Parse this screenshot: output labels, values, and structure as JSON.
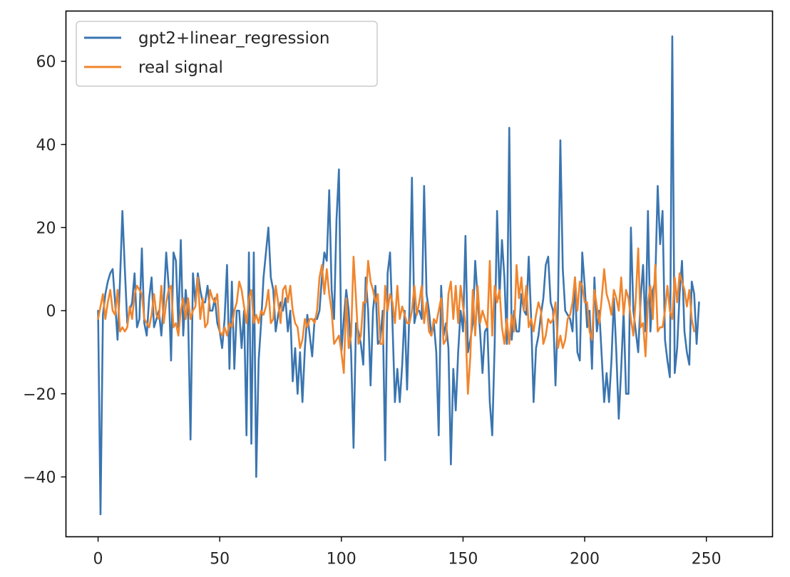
{
  "chart_data": {
    "type": "line",
    "title": "",
    "xlabel": "",
    "ylabel": "",
    "xlim": [
      -13.2,
      277.2
    ],
    "ylim": [
      -54.4,
      72.1
    ],
    "xticks": [
      0,
      50,
      100,
      150,
      200,
      250
    ],
    "yticks": [
      -40,
      -20,
      0,
      20,
      40,
      60
    ],
    "xtick_labels": [
      "0",
      "50",
      "100",
      "150",
      "200",
      "250"
    ],
    "ytick_labels": [
      "−40",
      "−20",
      "0",
      "20",
      "40",
      "60"
    ],
    "grid": false,
    "legend_position": "upper-left",
    "series": [
      {
        "name": "gpt2+linear_regression",
        "color": "#3a75b0",
        "x_start": 0,
        "values": [
          0,
          -49,
          -1,
          4,
          7,
          9,
          10,
          2,
          -7,
          7,
          24,
          10,
          -3,
          0,
          2,
          9,
          -4,
          -2,
          15,
          -3,
          -6,
          3,
          8,
          -4,
          -2,
          0,
          -6,
          2,
          14,
          6,
          -12,
          14,
          12,
          -4,
          17,
          -6,
          5,
          -1,
          -31,
          9,
          2,
          9,
          5,
          2,
          2,
          6,
          0,
          0,
          3,
          -3,
          -5,
          -9,
          -2,
          11,
          -14,
          7,
          -14,
          0,
          0,
          -9,
          0,
          -30,
          14,
          -32,
          14,
          -40,
          -12,
          -3,
          8,
          14,
          20,
          8,
          5,
          -5,
          -1,
          2,
          0,
          3,
          -5,
          0,
          -17,
          -9,
          -20,
          -10,
          -22,
          -9,
          -1,
          -6,
          -11,
          -2,
          -2,
          0,
          8,
          14,
          12,
          29,
          5,
          -2,
          22,
          34,
          -10,
          -2,
          5,
          0,
          -10,
          -33,
          -3,
          -5,
          -8,
          -13,
          8,
          0,
          -18,
          0,
          6,
          -8,
          -7,
          0,
          -36,
          9,
          14,
          -3,
          -22,
          -14,
          -22,
          -13,
          0,
          -19,
          1,
          32,
          -3,
          0,
          0,
          -2,
          30,
          4,
          0,
          -6,
          -3,
          -10,
          -30,
          6,
          -6,
          -3,
          -9,
          -37,
          -14,
          -24,
          -10,
          0,
          -5,
          18,
          -10,
          -7,
          -3,
          12,
          3,
          -5,
          -15,
          -5,
          -4,
          -22,
          -30,
          -8,
          24,
          3,
          17,
          8,
          -8,
          44,
          -7,
          0,
          -5,
          -5,
          4,
          0,
          -1,
          13,
          -2,
          -22,
          -9,
          -6,
          -1,
          3,
          11,
          13,
          2,
          0,
          -18,
          0,
          41,
          10,
          0,
          -1,
          -2,
          -5,
          8,
          -10,
          -12,
          14,
          6,
          -4,
          0,
          -14,
          8,
          -5,
          0,
          -11,
          -22,
          -15,
          -22,
          -12,
          3,
          -10,
          -26,
          -14,
          0,
          -20,
          -20,
          20,
          0,
          -5,
          -10,
          3,
          11,
          -5,
          24,
          -5,
          5,
          7,
          30,
          16,
          24,
          -7,
          -12,
          -16,
          66,
          -15,
          -9,
          4,
          12,
          -5,
          -10,
          -13,
          7,
          4,
          -8,
          2
        ]
      },
      {
        "name": "real signal",
        "color": "#f0852d",
        "x_start": 0,
        "values": [
          -2,
          1,
          4,
          -2,
          2,
          5,
          0,
          -1,
          5,
          -5,
          -4,
          -5,
          -4,
          1,
          -2,
          4,
          6,
          5,
          4,
          -2,
          -3,
          -4,
          -1,
          4,
          -1,
          -2,
          6,
          -3,
          2,
          5,
          6,
          -4,
          -3,
          -6,
          0,
          3,
          -2,
          3,
          -2,
          0,
          1,
          8,
          -2,
          3,
          -4,
          -3,
          5,
          3,
          2,
          4,
          -5,
          -6,
          -4,
          -6,
          -3,
          -4,
          0,
          2,
          7,
          5,
          1,
          -3,
          3,
          5,
          -3,
          -1,
          -3,
          0,
          -1,
          1,
          5,
          -3,
          -2,
          6,
          2,
          -3,
          5,
          6,
          2,
          6,
          0,
          -3,
          -4,
          -9,
          -7,
          -2,
          -4,
          -2,
          -2,
          -3,
          0,
          8,
          11,
          4,
          10,
          4,
          0,
          -8,
          -7,
          -6,
          -10,
          -15,
          3,
          -9,
          -6,
          13,
          3,
          -8,
          -6,
          2,
          2,
          12,
          7,
          5,
          2,
          4,
          -8,
          -8,
          6,
          0,
          4,
          2,
          -3,
          6,
          -2,
          1,
          -1,
          -3,
          -3,
          0,
          6,
          -1,
          2,
          6,
          -3,
          2,
          -5,
          -6,
          -2,
          -3,
          0,
          3,
          -8,
          -7,
          4,
          7,
          -2,
          6,
          -3,
          6,
          1,
          -3,
          -20,
          -11,
          5,
          -6,
          6,
          -3,
          0,
          -2,
          -4,
          12,
          -6,
          6,
          2,
          5,
          -4,
          -8,
          -2,
          -8,
          -1,
          -5,
          11,
          3,
          8,
          0,
          6,
          -4,
          -2,
          -5,
          -1,
          2,
          0,
          -8,
          -6,
          -2,
          -3,
          -2,
          2,
          -9,
          -6,
          -9,
          -7,
          -2,
          -1,
          2,
          8,
          0,
          7,
          6,
          2,
          2,
          -5,
          -7,
          5,
          1,
          -3,
          3,
          10,
          4,
          2,
          -1,
          5,
          3,
          0,
          8,
          -1,
          5,
          3,
          -2,
          -6,
          3,
          15,
          -4,
          -3,
          -11,
          2,
          6,
          -2,
          11,
          -5,
          -4,
          -4,
          0,
          6,
          0,
          -2,
          8,
          2,
          9,
          7,
          5,
          1,
          5,
          -2,
          -5
        ]
      }
    ]
  }
}
